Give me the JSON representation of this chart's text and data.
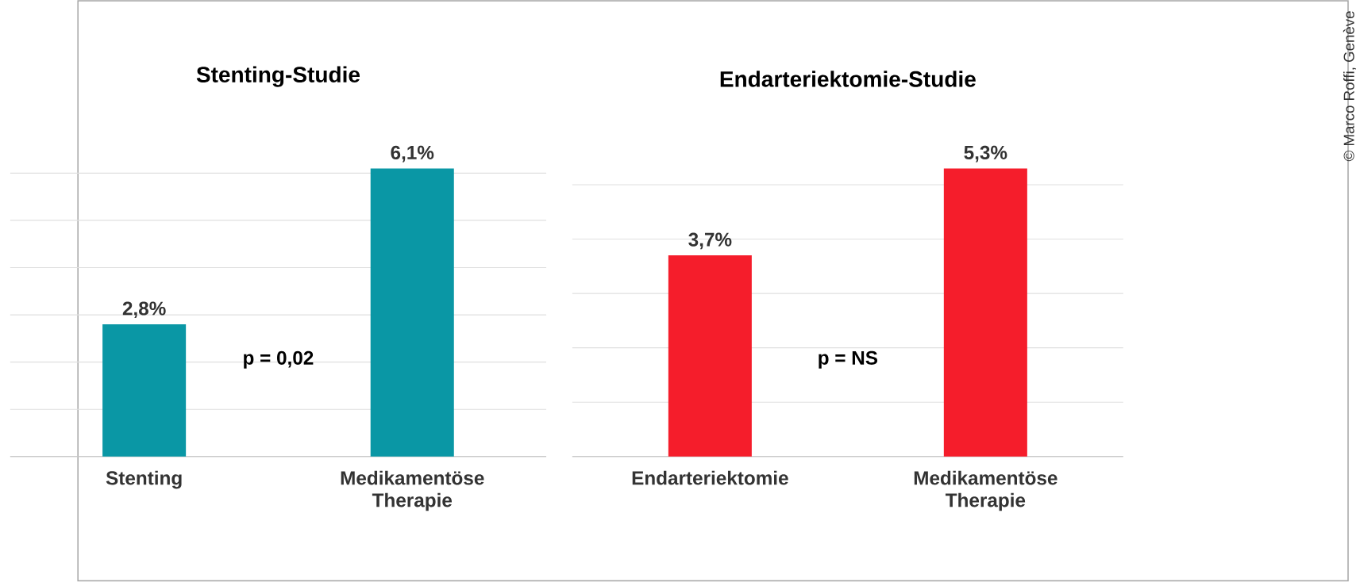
{
  "chart_data": [
    {
      "type": "bar",
      "title": "Stenting-Studie",
      "categories": [
        "Stenting",
        "Medikamentöse Therapie"
      ],
      "values": [
        2.8,
        6.1
      ],
      "value_labels": [
        "2,8%",
        "6,1%"
      ],
      "color": "#0a97a5",
      "grid": "y",
      "tick_labels": "x",
      "annotations": [
        "p = 0,02"
      ]
    },
    {
      "type": "bar",
      "title": "Endarteriektomie-Studie",
      "categories": [
        "Endarteriektomie",
        "Medikamentöse Therapie"
      ],
      "values": [
        3.7,
        5.3
      ],
      "value_labels": [
        "3,7%",
        "5,3%"
      ],
      "color": "#f51d2b",
      "grid": "y",
      "tick_labels": "x",
      "annotations": [
        "p = NS",
        "© Marco Roffi, Genève"
      ]
    }
  ]
}
